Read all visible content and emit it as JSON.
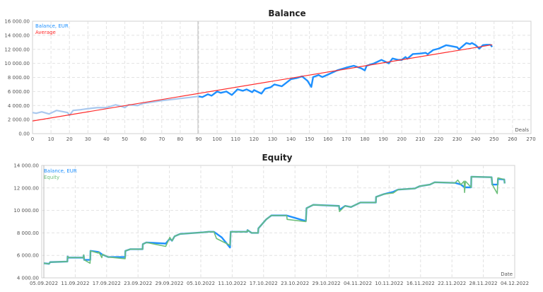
{
  "chart_data": [
    {
      "type": "line",
      "title": "Balance",
      "xlabel": "Deals",
      "ylabel": "",
      "xlim": [
        0,
        270
      ],
      "ylim": [
        0,
        16000
      ],
      "xticks": [
        0,
        10,
        20,
        30,
        40,
        50,
        60,
        70,
        80,
        90,
        100,
        110,
        120,
        130,
        140,
        150,
        160,
        170,
        180,
        190,
        200,
        210,
        220,
        230,
        240,
        250,
        260,
        270
      ],
      "yticks": [
        0,
        2000,
        4000,
        6000,
        8000,
        10000,
        12000,
        14000,
        16000
      ],
      "ytick_labels": [
        "0.00",
        "2 000.00",
        "4 000.00",
        "6 000.00",
        "8 000.00",
        "10 000.00",
        "12 000.00",
        "14 000.00",
        "16 000.00"
      ],
      "grid": true,
      "legend": "top-left",
      "marker_deal": 90,
      "series": [
        {
          "name": "Balance, EUR",
          "color": "#1e90ff",
          "faded_color": "#a9c8ee",
          "x": [
            0,
            2,
            5,
            9,
            13,
            17,
            19,
            20,
            22,
            26,
            30,
            35,
            40,
            45,
            48,
            50,
            52,
            57,
            60,
            65,
            70,
            75,
            80,
            85,
            90,
            92,
            95,
            97,
            100,
            102,
            105,
            108,
            111,
            114,
            116,
            119,
            120,
            124,
            126,
            129,
            131,
            135,
            140,
            143,
            146,
            149,
            151,
            152,
            155,
            157,
            160,
            165,
            170,
            174,
            178,
            180,
            181,
            185,
            189,
            193,
            195,
            198,
            200,
            202,
            203,
            206,
            210,
            213,
            214,
            217,
            220,
            224,
            226,
            230,
            231,
            235,
            237,
            238,
            240,
            242,
            244,
            246,
            248,
            249
          ],
          "y": [
            3000,
            2900,
            3100,
            2800,
            3300,
            3100,
            3000,
            2600,
            3300,
            3400,
            3550,
            3700,
            3700,
            4100,
            3900,
            3700,
            4100,
            4000,
            4300,
            4500,
            4700,
            4850,
            5000,
            5150,
            5300,
            5200,
            5600,
            5400,
            6000,
            5800,
            6000,
            5500,
            6300,
            6100,
            6300,
            5900,
            6200,
            5700,
            6400,
            6600,
            7000,
            6740,
            7750,
            7900,
            8150,
            7500,
            6640,
            8050,
            8340,
            8050,
            8400,
            9000,
            9400,
            9660,
            9300,
            9000,
            9660,
            10000,
            10500,
            10000,
            10700,
            10500,
            10490,
            10900,
            10650,
            11330,
            11400,
            11500,
            11300,
            11900,
            12100,
            12580,
            12500,
            12300,
            12000,
            12900,
            12750,
            12900,
            12600,
            12100,
            12600,
            12650,
            12650,
            12350
          ]
        },
        {
          "name": "Average",
          "color": "#ff2a2a",
          "x": [
            0,
            249
          ],
          "y": [
            1800,
            12650
          ]
        }
      ]
    },
    {
      "type": "line",
      "title": "Equity",
      "xlabel": "Date",
      "ylabel": "",
      "xlim": [
        "2022-09-05",
        "2022-12-04"
      ],
      "ylim": [
        4000,
        14000
      ],
      "xtick_labels": [
        "05.09.2022",
        "11.09.2022",
        "17.09.2022",
        "23.09.2022",
        "29.09.2022",
        "05.10.2022",
        "11.10.2022",
        "17.10.2022",
        "23.10.2022",
        "29.10.2022",
        "04.11.2022",
        "10.11.2022",
        "16.11.2022",
        "22.11.2022",
        "28.11.2022",
        "04.12.2022"
      ],
      "yticks": [
        4000,
        6000,
        8000,
        10000,
        12000,
        14000
      ],
      "ytick_labels": [
        "4 000.00",
        "6 000.00",
        "8 000.00",
        "10 000.00",
        "12 000.00",
        "14 000.00"
      ],
      "grid": true,
      "legend": "top-left",
      "series": [
        {
          "name": "Balance, EUR",
          "color": "#1e90ff",
          "points": [
            [
              "2022-09-05 00:00",
              5300
            ],
            [
              "2022-09-06 00:00",
              5250
            ],
            [
              "2022-09-06 05:00",
              5400
            ],
            [
              "2022-09-09 12:00",
              5450
            ],
            [
              "2022-09-09 13:00",
              5900
            ],
            [
              "2022-09-09 18:00",
              5800
            ],
            [
              "2022-09-12 14:00",
              5800
            ],
            [
              "2022-09-12 15:00",
              6000
            ],
            [
              "2022-09-12 17:00",
              5600
            ],
            [
              "2022-09-13 21:00",
              5600
            ],
            [
              "2022-09-13 22:00",
              6400
            ],
            [
              "2022-09-15 12:00",
              6300
            ],
            [
              "2022-09-16 02:00",
              6100
            ],
            [
              "2022-09-17 07:00",
              5850
            ],
            [
              "2022-09-20 13:00",
              5850
            ],
            [
              "2022-09-20 14:00",
              6400
            ],
            [
              "2022-09-21 12:00",
              6550
            ],
            [
              "2022-09-23 21:00",
              6550
            ],
            [
              "2022-09-23 22:00",
              7000
            ],
            [
              "2022-09-24 14:00",
              7150
            ],
            [
              "2022-09-28 07:00",
              7050
            ],
            [
              "2022-09-29 02:00",
              7500
            ],
            [
              "2022-09-29 12:00",
              7300
            ],
            [
              "2022-09-30 00:00",
              7700
            ],
            [
              "2022-10-01 00:00",
              7900
            ],
            [
              "2022-10-05 12:00",
              8050
            ],
            [
              "2022-10-06 12:00",
              8100
            ],
            [
              "2022-10-07 12:00",
              8100
            ],
            [
              "2022-10-09 00:00",
              7600
            ],
            [
              "2022-10-10 14:00",
              6700
            ],
            [
              "2022-10-10 17:00",
              8100
            ],
            [
              "2022-10-13 21:00",
              8100
            ],
            [
              "2022-10-13 22:00",
              8250
            ],
            [
              "2022-10-14 17:00",
              8000
            ],
            [
              "2022-10-15 23:00",
              8000
            ],
            [
              "2022-10-16 00:00",
              8400
            ],
            [
              "2022-10-17 12:00",
              9200
            ],
            [
              "2022-10-18 12:00",
              9550
            ],
            [
              "2022-10-21 10:00",
              9550
            ],
            [
              "2022-10-25 02:00",
              9050
            ],
            [
              "2022-10-25 05:00",
              10200
            ],
            [
              "2022-10-26 12:00",
              10500
            ],
            [
              "2022-10-31 10:00",
              10400
            ],
            [
              "2022-10-31 12:00",
              10050
            ],
            [
              "2022-11-01 14:00",
              10400
            ],
            [
              "2022-11-02 17:00",
              10300
            ],
            [
              "2022-11-04 12:00",
              10700
            ],
            [
              "2022-11-07 11:00",
              10700
            ],
            [
              "2022-11-07 12:00",
              11200
            ],
            [
              "2022-11-09 00:00",
              11450
            ],
            [
              "2022-11-10 19:00",
              11650
            ],
            [
              "2022-11-11 17:00",
              11850
            ],
            [
              "2022-11-14 22:00",
              11950
            ],
            [
              "2022-11-15 19:00",
              12150
            ],
            [
              "2022-11-17 19:00",
              12300
            ],
            [
              "2022-11-18 17:00",
              12500
            ],
            [
              "2022-11-22 14:00",
              12450
            ],
            [
              "2022-11-23 17:00",
              12300
            ],
            [
              "2022-11-24 10:00",
              12050
            ],
            [
              "2022-11-25 16:00",
              12050
            ],
            [
              "2022-11-25 17:00",
              13000
            ],
            [
              "2022-11-29 14:00",
              12950
            ],
            [
              "2022-11-29 17:00",
              12300
            ],
            [
              "2022-11-30 18:00",
              12300
            ],
            [
              "2022-11-30 19:00",
              12800
            ],
            [
              "2022-12-02 00:00",
              12750
            ],
            [
              "2022-12-02 02:00",
              12400
            ]
          ]
        },
        {
          "name": "Equity",
          "color": "#6dbf7a",
          "points": [
            [
              "2022-09-05 00:00",
              5300
            ],
            [
              "2022-09-06 00:00",
              5250
            ],
            [
              "2022-09-06 05:00",
              5400
            ],
            [
              "2022-09-09 12:00",
              5450
            ],
            [
              "2022-09-09 13:00",
              5900
            ],
            [
              "2022-09-09 18:00",
              5800
            ],
            [
              "2022-09-12 14:00",
              5800
            ],
            [
              "2022-09-12 15:00",
              6050
            ],
            [
              "2022-09-12 17:00",
              5600
            ],
            [
              "2022-09-13 20:00",
              5300
            ],
            [
              "2022-09-13 22:00",
              6400
            ],
            [
              "2022-09-15 10:00",
              6200
            ],
            [
              "2022-09-15 12:00",
              6300
            ],
            [
              "2022-09-16 02:00",
              5800
            ],
            [
              "2022-09-16 05:00",
              6100
            ],
            [
              "2022-09-17 07:00",
              5850
            ],
            [
              "2022-09-20 13:00",
              5700
            ],
            [
              "2022-09-20 14:00",
              6400
            ],
            [
              "2022-09-21 12:00",
              6550
            ],
            [
              "2022-09-23 21:00",
              6550
            ],
            [
              "2022-09-23 22:00",
              7000
            ],
            [
              "2022-09-24 14:00",
              7150
            ],
            [
              "2022-09-28 07:00",
              6800
            ],
            [
              "2022-09-29 02:00",
              7600
            ],
            [
              "2022-09-29 12:00",
              7300
            ],
            [
              "2022-09-30 00:00",
              7700
            ],
            [
              "2022-10-01 00:00",
              7900
            ],
            [
              "2022-10-05 12:00",
              8050
            ],
            [
              "2022-10-06 12:00",
              8100
            ],
            [
              "2022-10-07 12:00",
              8100
            ],
            [
              "2022-10-08 00:00",
              7500
            ],
            [
              "2022-10-10 14:00",
              6900
            ],
            [
              "2022-10-10 17:00",
              8100
            ],
            [
              "2022-10-13 21:00",
              8100
            ],
            [
              "2022-10-13 22:00",
              8250
            ],
            [
              "2022-10-14 17:00",
              8000
            ],
            [
              "2022-10-15 23:00",
              8000
            ],
            [
              "2022-10-16 00:00",
              8400
            ],
            [
              "2022-10-17 12:00",
              9200
            ],
            [
              "2022-10-18 12:00",
              9550
            ],
            [
              "2022-10-21 10:00",
              9550
            ],
            [
              "2022-10-21 12:00",
              9200
            ],
            [
              "2022-10-25 02:00",
              9000
            ],
            [
              "2022-10-25 05:00",
              10200
            ],
            [
              "2022-10-26 12:00",
              10500
            ],
            [
              "2022-10-31 10:00",
              10400
            ],
            [
              "2022-10-31 12:00",
              9900
            ],
            [
              "2022-11-01 14:00",
              10400
            ],
            [
              "2022-11-02 17:00",
              10300
            ],
            [
              "2022-11-04 12:00",
              10700
            ],
            [
              "2022-11-07 11:00",
              10700
            ],
            [
              "2022-11-07 12:00",
              11200
            ],
            [
              "2022-11-09 00:00",
              11450
            ],
            [
              "2022-11-10 19:00",
              11550
            ],
            [
              "2022-11-11 17:00",
              11850
            ],
            [
              "2022-11-14 22:00",
              11950
            ],
            [
              "2022-11-15 19:00",
              12150
            ],
            [
              "2022-11-17 19:00",
              12300
            ],
            [
              "2022-11-18 17:00",
              12500
            ],
            [
              "2022-11-22 14:00",
              12450
            ],
            [
              "2022-11-23 03:00",
              12700
            ],
            [
              "2022-11-23 17:00",
              12300
            ],
            [
              "2022-11-24 08:00",
              12600
            ],
            [
              "2022-11-24 10:00",
              11600
            ],
            [
              "2022-11-24 14:00",
              12600
            ],
            [
              "2022-11-25 16:00",
              12050
            ],
            [
              "2022-11-25 17:00",
              13000
            ],
            [
              "2022-11-29 14:00",
              12950
            ],
            [
              "2022-11-29 17:00",
              12300
            ],
            [
              "2022-11-30 16:00",
              11500
            ],
            [
              "2022-11-30 19:00",
              12900
            ],
            [
              "2022-12-02 00:00",
              12750
            ],
            [
              "2022-12-02 02:00",
              12400
            ]
          ]
        }
      ]
    }
  ]
}
